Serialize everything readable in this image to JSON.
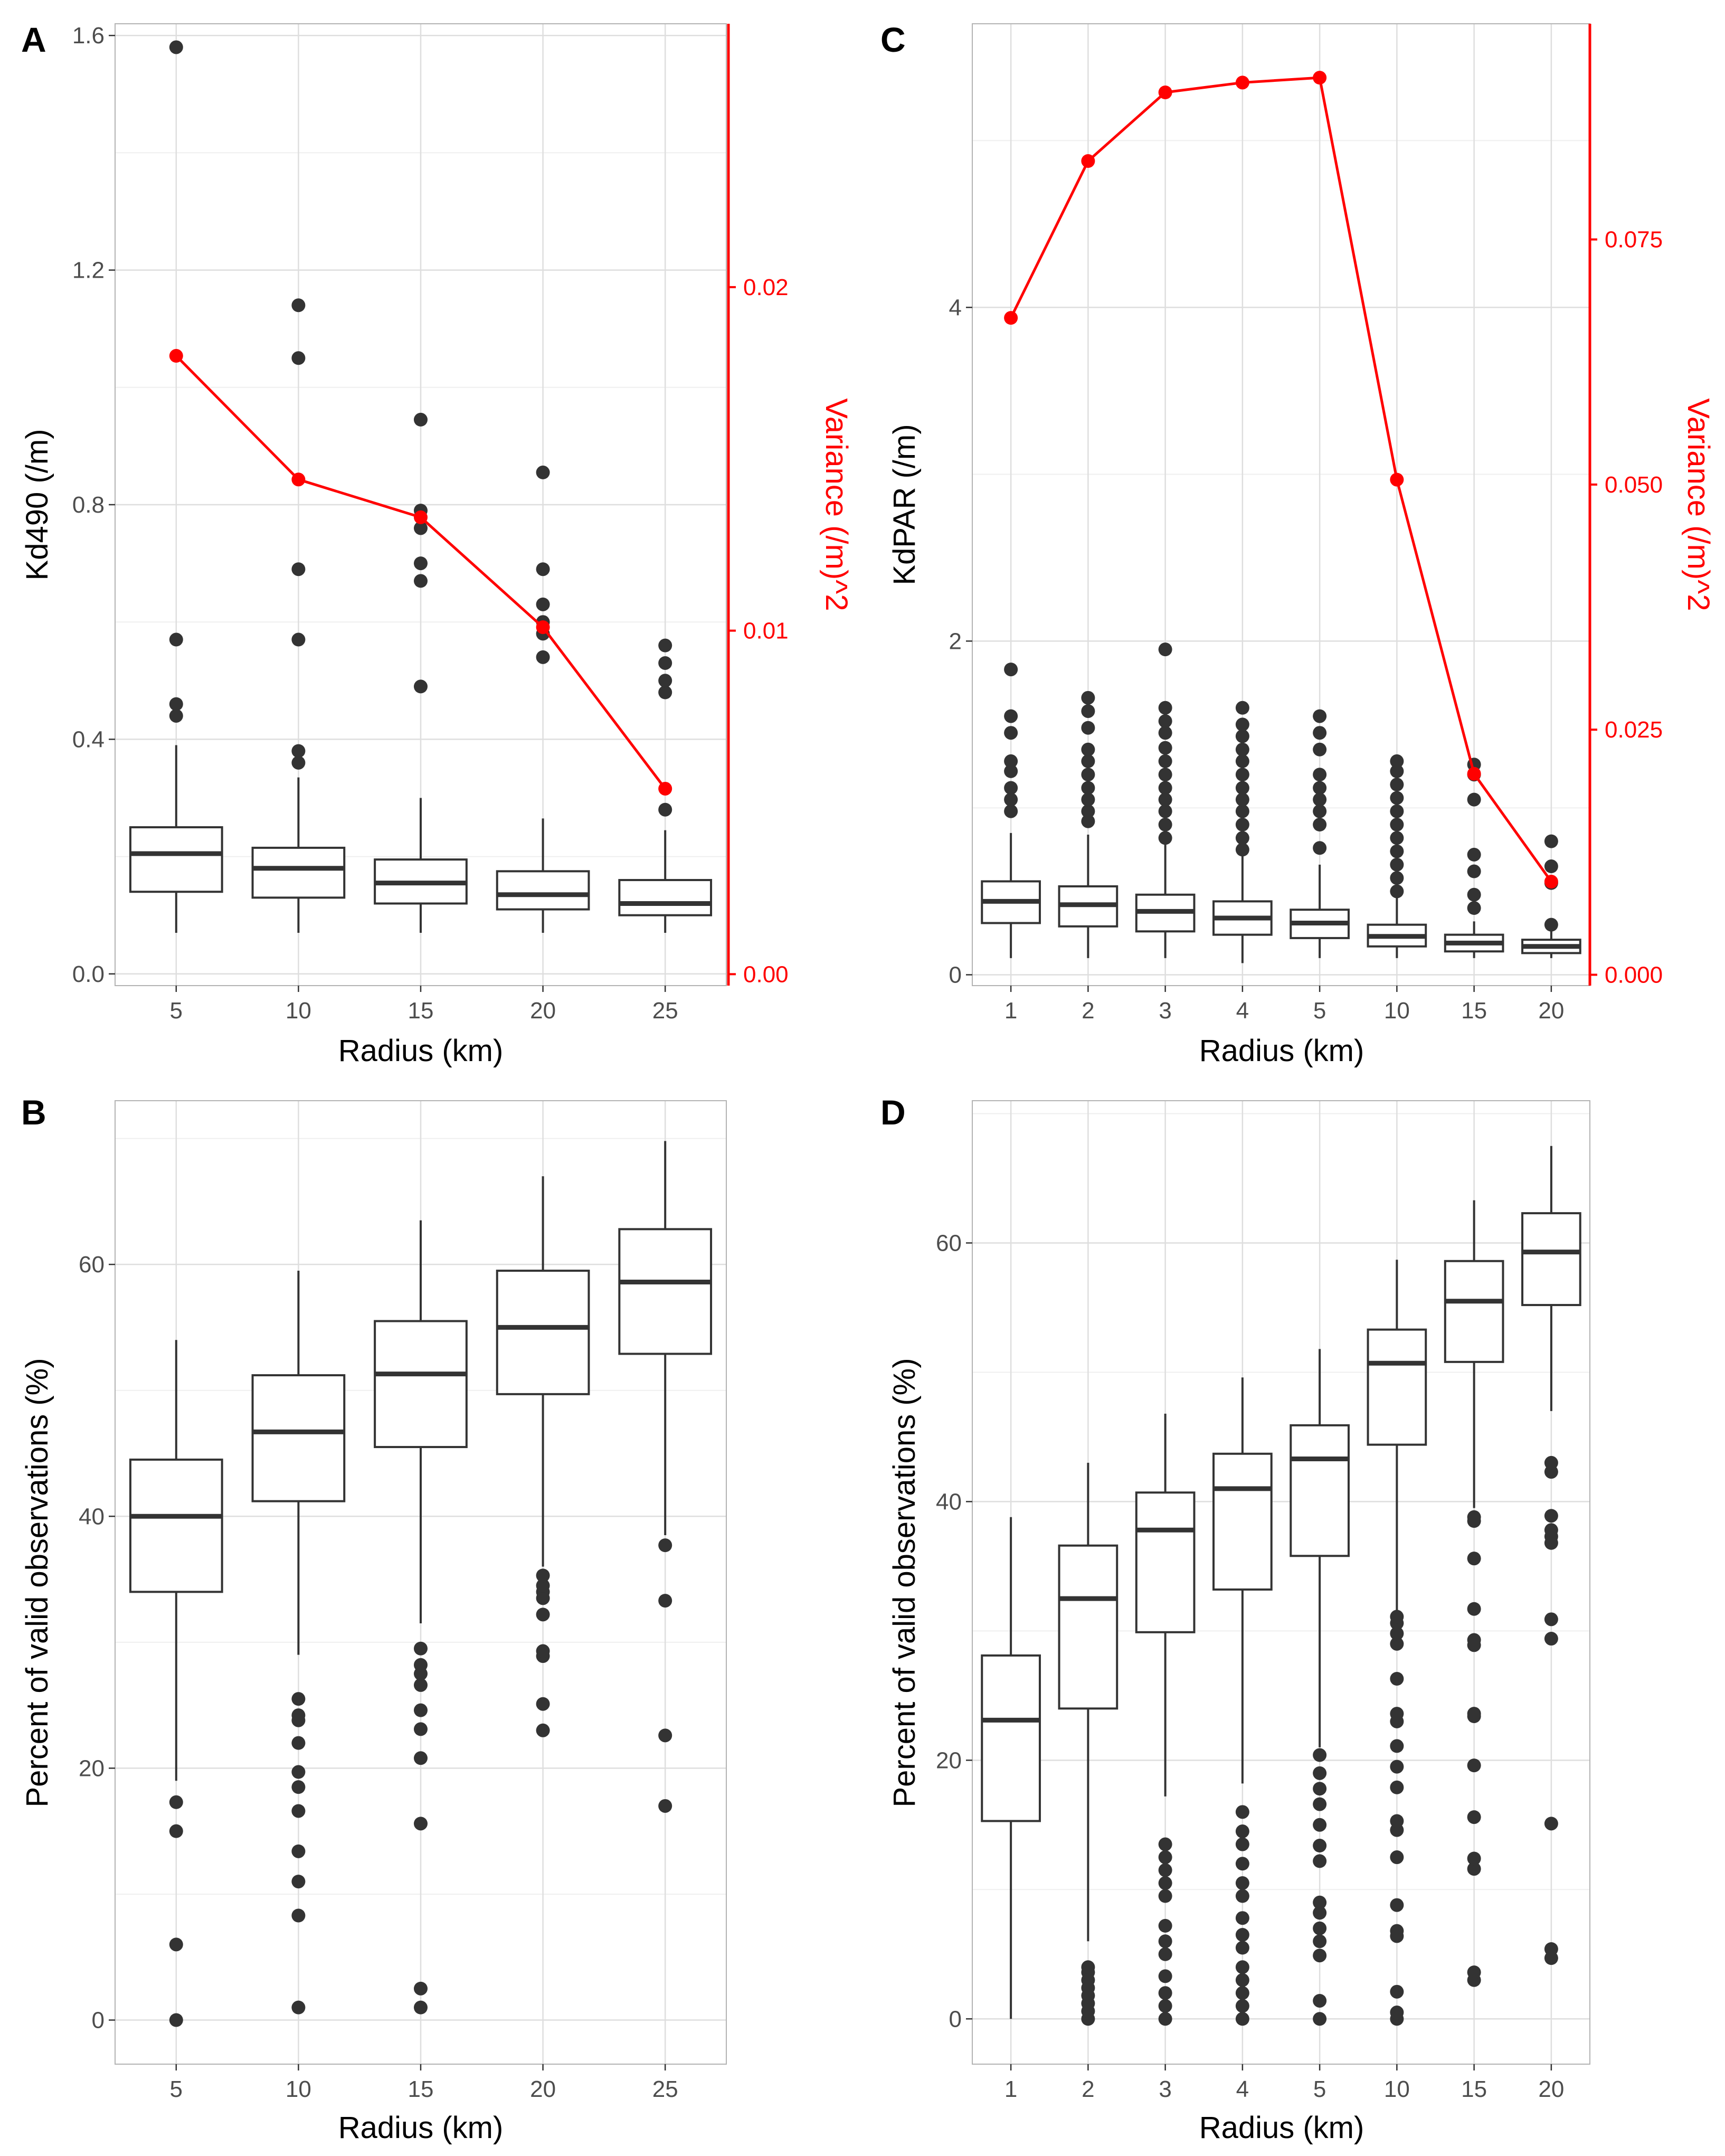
{
  "colors": {
    "box": "#333333",
    "variance": "#ff0000",
    "grid_major": "#dedede",
    "grid_minor": "#efefef",
    "panel_border": "#b3b3b3",
    "tick_text": "#4d4d4d"
  },
  "chart_data": [
    {
      "panel": "A",
      "type": "box",
      "categories": [
        "5",
        "10",
        "15",
        "20",
        "25"
      ],
      "xlabel": "Radius (km)",
      "ylabel": "Kd490 (/m)",
      "ylim": [
        -0.02,
        1.62
      ],
      "yticks": [
        0.0,
        0.4,
        0.8,
        1.2,
        1.6
      ],
      "ytick_labels": [
        "0.0",
        "0.4",
        "0.8",
        "1.2",
        "1.6"
      ],
      "boxes": [
        {
          "whisker_low": 0.07,
          "q1": 0.14,
          "median": 0.205,
          "q3": 0.25,
          "whisker_high": 0.39,
          "outliers": [
            0.44,
            0.46,
            0.57,
            1.58
          ]
        },
        {
          "whisker_low": 0.07,
          "q1": 0.13,
          "median": 0.18,
          "q3": 0.215,
          "whisker_high": 0.335,
          "outliers": [
            0.36,
            0.38,
            0.57,
            0.69,
            1.05,
            1.14
          ]
        },
        {
          "whisker_low": 0.07,
          "q1": 0.12,
          "median": 0.155,
          "q3": 0.195,
          "whisker_high": 0.3,
          "outliers": [
            0.49,
            0.67,
            0.7,
            0.76,
            0.79,
            0.945
          ]
        },
        {
          "whisker_low": 0.07,
          "q1": 0.11,
          "median": 0.135,
          "q3": 0.175,
          "whisker_high": 0.265,
          "outliers": [
            0.54,
            0.58,
            0.6,
            0.63,
            0.69,
            0.855
          ]
        },
        {
          "whisker_low": 0.07,
          "q1": 0.1,
          "median": 0.12,
          "q3": 0.16,
          "whisker_high": 0.245,
          "outliers": [
            0.28,
            0.48,
            0.5,
            0.53,
            0.56
          ]
        }
      ],
      "variance": {
        "name": "Variance (/m)^2",
        "values": [
          0.018,
          0.0144,
          0.0133,
          0.0101,
          0.0054
        ],
        "ylim": [
          -0.000333,
          0.027667
        ],
        "yticks": [
          0.0,
          0.01,
          0.02
        ],
        "ytick_labels": [
          "0.00",
          "0.01",
          "0.02"
        ]
      }
    },
    {
      "panel": "C",
      "type": "box",
      "categories": [
        "1",
        "2",
        "3",
        "4",
        "5",
        "10",
        "15",
        "20"
      ],
      "xlabel": "Radius (km)",
      "ylabel": "KdPAR (/m)",
      "ylim": [
        -0.065,
        5.7
      ],
      "yticks": [
        0,
        2,
        4
      ],
      "ytick_labels": [
        "0",
        "2",
        "4"
      ],
      "boxes": [
        {
          "whisker_low": 0.1,
          "q1": 0.31,
          "median": 0.44,
          "q3": 0.56,
          "whisker_high": 0.85,
          "outliers": [
            0.98,
            1.05,
            1.12,
            1.22,
            1.28,
            1.45,
            1.55,
            1.83
          ]
        },
        {
          "whisker_low": 0.1,
          "q1": 0.29,
          "median": 0.42,
          "q3": 0.53,
          "whisker_high": 0.84,
          "outliers": [
            0.92,
            0.98,
            1.05,
            1.12,
            1.2,
            1.28,
            1.35,
            1.48,
            1.58,
            1.66
          ]
        },
        {
          "whisker_low": 0.1,
          "q1": 0.26,
          "median": 0.38,
          "q3": 0.48,
          "whisker_high": 0.78,
          "outliers": [
            0.82,
            0.9,
            0.98,
            1.05,
            1.12,
            1.2,
            1.28,
            1.36,
            1.45,
            1.52,
            1.6,
            1.95
          ]
        },
        {
          "whisker_low": 0.07,
          "q1": 0.24,
          "median": 0.34,
          "q3": 0.44,
          "whisker_high": 0.72,
          "outliers": [
            0.75,
            0.82,
            0.9,
            0.98,
            1.05,
            1.12,
            1.2,
            1.28,
            1.35,
            1.43,
            1.5,
            1.6
          ]
        },
        {
          "whisker_low": 0.1,
          "q1": 0.22,
          "median": 0.31,
          "q3": 0.39,
          "whisker_high": 0.66,
          "outliers": [
            0.76,
            0.9,
            0.98,
            1.05,
            1.12,
            1.2,
            1.35,
            1.45,
            1.55
          ]
        },
        {
          "whisker_low": 0.1,
          "q1": 0.17,
          "median": 0.23,
          "q3": 0.3,
          "whisker_high": 0.48,
          "outliers": [
            0.5,
            0.58,
            0.66,
            0.74,
            0.82,
            0.9,
            0.98,
            1.06,
            1.14,
            1.22,
            1.28
          ]
        },
        {
          "whisker_low": 0.1,
          "q1": 0.14,
          "median": 0.19,
          "q3": 0.24,
          "whisker_high": 0.32,
          "outliers": [
            0.4,
            0.48,
            0.62,
            0.72,
            1.05,
            1.2,
            1.26
          ]
        },
        {
          "whisker_low": 0.1,
          "q1": 0.13,
          "median": 0.17,
          "q3": 0.21,
          "whisker_high": 0.26,
          "outliers": [
            0.3,
            0.55,
            0.65,
            0.8
          ]
        }
      ],
      "variance": {
        "name": "Variance (/m)^2",
        "values": [
          0.067,
          0.083,
          0.09,
          0.091,
          0.0915,
          0.0505,
          0.0205,
          0.0095
        ],
        "ylim": [
          -0.001106,
          0.097
        ],
        "yticks": [
          0.0,
          0.025,
          0.05,
          0.075
        ],
        "ytick_labels": [
          "0.000",
          "0.025",
          "0.050",
          "0.075"
        ]
      }
    },
    {
      "panel": "B",
      "type": "box",
      "categories": [
        "5",
        "10",
        "15",
        "20",
        "25"
      ],
      "xlabel": "Radius (km)",
      "ylabel": "Percent of valid observations (%)",
      "ylim": [
        -3.5,
        73
      ],
      "yticks": [
        0,
        20,
        40,
        60
      ],
      "ytick_labels": [
        "0",
        "20",
        "40",
        "60"
      ],
      "boxes": [
        {
          "whisker_low": 19,
          "q1": 34,
          "median": 40,
          "q3": 44.5,
          "whisker_high": 54,
          "outliers": [
            0,
            6,
            15,
            17.3
          ]
        },
        {
          "whisker_low": 29,
          "q1": 41.2,
          "median": 46.7,
          "q3": 51.2,
          "whisker_high": 59.5,
          "outliers": [
            1,
            8.3,
            11,
            13.4,
            16.6,
            18.5,
            19.7,
            22,
            23.8,
            24.2,
            25.5
          ]
        },
        {
          "whisker_low": 31.5,
          "q1": 45.5,
          "median": 51.3,
          "q3": 55.5,
          "whisker_high": 63.5,
          "outliers": [
            1,
            2.5,
            15.6,
            20.8,
            23.1,
            24.6,
            26.6,
            27.5,
            28.2,
            29.5
          ]
        },
        {
          "whisker_low": 36,
          "q1": 49.7,
          "median": 55,
          "q3": 59.5,
          "whisker_high": 67,
          "outliers": [
            23,
            25.1,
            28.9,
            29.3,
            32.2,
            33.5,
            34,
            34.5,
            35.3
          ]
        },
        {
          "whisker_low": 38.5,
          "q1": 52.9,
          "median": 58.6,
          "q3": 62.8,
          "whisker_high": 69.8,
          "outliers": [
            17,
            22.6,
            33.3,
            37.7
          ]
        }
      ]
    },
    {
      "panel": "D",
      "type": "box",
      "categories": [
        "1",
        "2",
        "3",
        "4",
        "5",
        "10",
        "15",
        "20"
      ],
      "xlabel": "Radius (km)",
      "ylabel": "Percent of valid observations (%)",
      "ylim": [
        -3.5,
        71
      ],
      "yticks": [
        0,
        20,
        40,
        60
      ],
      "ytick_labels": [
        "0",
        "20",
        "40",
        "60"
      ],
      "boxes": [
        {
          "whisker_low": 0,
          "q1": 15.3,
          "median": 23.1,
          "q3": 28.1,
          "whisker_high": 38.8,
          "outliers": []
        },
        {
          "whisker_low": 6,
          "q1": 24,
          "median": 32.5,
          "q3": 36.6,
          "whisker_high": 43,
          "outliers": [
            0,
            0.6,
            1.2,
            1.8,
            2.4,
            3,
            3.6,
            4
          ]
        },
        {
          "whisker_low": 17.2,
          "q1": 29.9,
          "median": 37.8,
          "q3": 40.7,
          "whisker_high": 46.8,
          "outliers": [
            0,
            1,
            2,
            3.3,
            5,
            6,
            7.2,
            9.5,
            10.5,
            11.5,
            12.5,
            13.5
          ]
        },
        {
          "whisker_low": 18.2,
          "q1": 33.2,
          "median": 41,
          "q3": 43.7,
          "whisker_high": 49.6,
          "outliers": [
            0,
            1,
            2,
            3,
            4,
            5.5,
            6.5,
            7.8,
            9.5,
            10.5,
            12,
            13.5,
            14.5,
            16
          ]
        },
        {
          "whisker_low": 21,
          "q1": 35.8,
          "median": 43.3,
          "q3": 45.9,
          "whisker_high": 51.8,
          "outliers": [
            0,
            1.4,
            4.9,
            6,
            7,
            8.2,
            9,
            12.2,
            13.4,
            15,
            16.6,
            17.8,
            19,
            20.4
          ]
        },
        {
          "whisker_low": 31.5,
          "q1": 44.4,
          "median": 50.7,
          "q3": 53.3,
          "whisker_high": 58.7,
          "outliers": [
            0,
            0.5,
            2.1,
            6.4,
            6.8,
            8.8,
            12.5,
            14.6,
            15.3,
            17.9,
            19.5,
            21.1,
            23,
            23.6,
            26.3,
            29,
            29.8,
            30.6,
            31.1
          ]
        },
        {
          "whisker_low": 39.5,
          "q1": 50.8,
          "median": 55.5,
          "q3": 58.6,
          "whisker_high": 63.3,
          "outliers": [
            3,
            3.6,
            11.6,
            12.4,
            15.6,
            19.6,
            23.4,
            23.6,
            28.9,
            29.3,
            31.7,
            35.6,
            38.5,
            38.8
          ]
        },
        {
          "whisker_low": 47,
          "q1": 55.2,
          "median": 59.3,
          "q3": 62.3,
          "whisker_high": 67.5,
          "outliers": [
            4.7,
            5.4,
            15.1,
            29.4,
            30.9,
            36.8,
            37.3,
            37.8,
            38.9,
            42.3,
            43
          ]
        }
      ]
    }
  ]
}
